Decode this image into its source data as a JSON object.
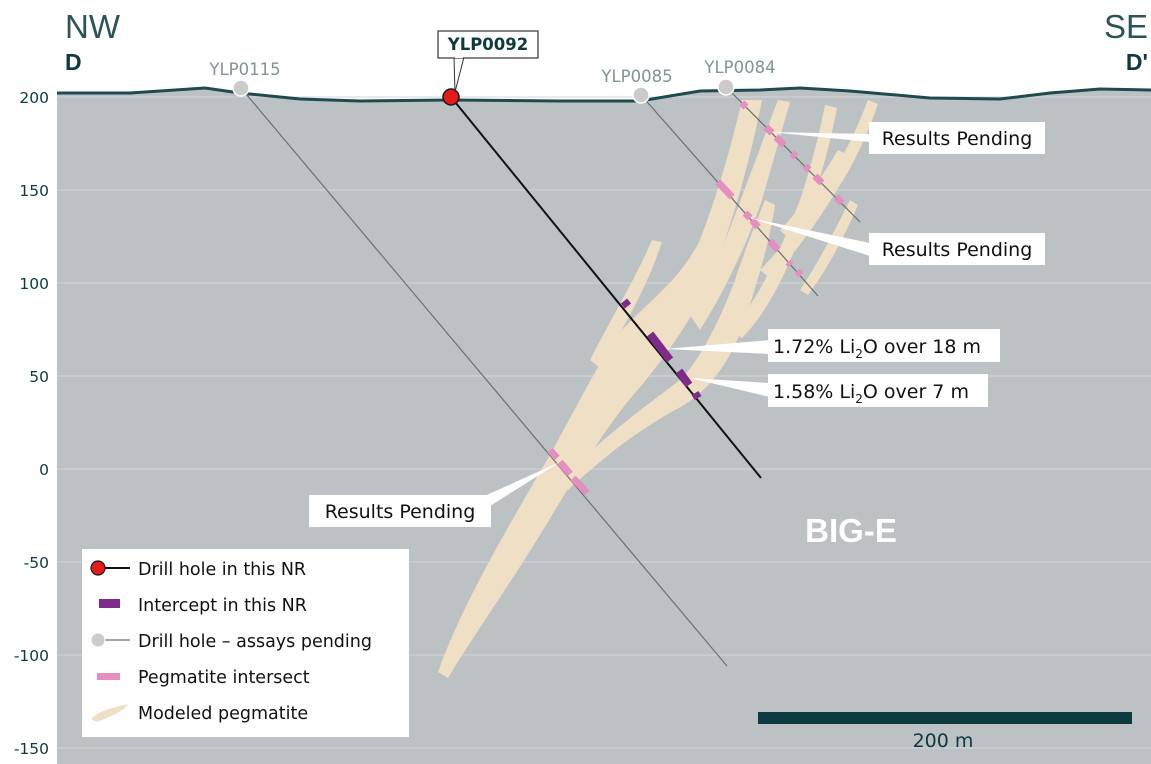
{
  "section": {
    "left_direction": "NW",
    "right_direction": "SE",
    "left_letter": "D",
    "right_letter": "D'"
  },
  "y_axis": {
    "ticks": [
      {
        "value": 200,
        "label": "200"
      },
      {
        "value": 150,
        "label": "150"
      },
      {
        "value": 100,
        "label": "100"
      },
      {
        "value": 50,
        "label": "50"
      },
      {
        "value": 0,
        "label": "0"
      },
      {
        "value": -50,
        "label": "-50"
      },
      {
        "value": -100,
        "label": "-100"
      },
      {
        "value": -150,
        "label": "-150"
      }
    ]
  },
  "drill_holes": [
    {
      "id": "YLP0115",
      "status": "assays pending"
    },
    {
      "id": "YLP0092",
      "status": "drill hole in this NR"
    },
    {
      "id": "YLP0085",
      "status": "assays pending"
    },
    {
      "id": "YLP0084",
      "status": "assays pending"
    }
  ],
  "callouts": [
    {
      "text": "Results Pending"
    },
    {
      "text": "Results Pending"
    },
    {
      "grade": "1.72% Li",
      "subscript": "2",
      "rest": "O over 18 m"
    },
    {
      "grade": "1.58% Li",
      "subscript": "2",
      "rest": "O over 7 m"
    },
    {
      "text": "Results Pending"
    }
  ],
  "zone_label": "BIG-E",
  "legend": [
    {
      "label": "Drill hole in this NR",
      "symbol": "red-collar"
    },
    {
      "label": "Intercept in this NR",
      "symbol": "purple-bar"
    },
    {
      "label": "Drill hole – assays pending",
      "symbol": "grey-collar"
    },
    {
      "label": "Pegmatite intersect",
      "symbol": "pink-bar"
    },
    {
      "label": "Modeled pegmatite",
      "symbol": "tan-shape"
    }
  ],
  "scale_bar": {
    "label": "200 m"
  },
  "colors": {
    "ground": "#bcc1c4",
    "pegmatite": "#efdfc5",
    "collar_this_nr": "#e31b1b",
    "collar_pending": "#cbcbcb",
    "intercept": "#7e2a8a",
    "pegmatite_intersect": "#e48fc0",
    "accent": "#0d3a3e"
  }
}
